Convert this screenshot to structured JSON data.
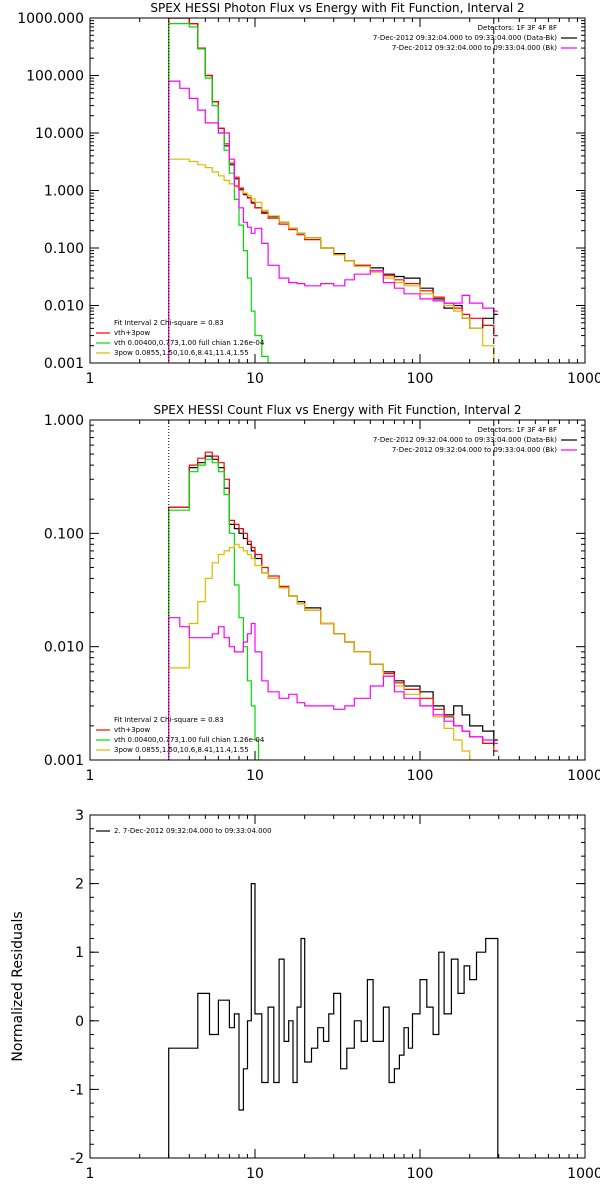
{
  "colors": {
    "data": "#000000",
    "total": "#ff0000",
    "vth": "#00dd00",
    "bpow": "#ddbb00",
    "bk": "#ff00ff",
    "axes": "#000000"
  },
  "chart_data": [
    {
      "id": "photon",
      "type": "line",
      "title": "SPEX HESSI Photon Flux vs Energy with Fit Function, Interval 2",
      "xlabel": "",
      "ylabel": "",
      "xscale": "log",
      "yscale": "log",
      "xlim": [
        1,
        1000
      ],
      "ylim": [
        0.001,
        1000
      ],
      "xticks": [
        1,
        10,
        100,
        1000
      ],
      "xtick_labels": [
        "1",
        "10",
        "100",
        "1000"
      ],
      "yticks": [
        0.001,
        0.01,
        0.1,
        1,
        10,
        100,
        1000
      ],
      "ytick_labels": [
        "0.001",
        "0.010",
        "0.100",
        "1.000",
        "10.000",
        "100.000",
        "1000.000"
      ],
      "vlines": [
        {
          "x": 3,
          "style": "dotted",
          "color": "#000000"
        },
        {
          "x": 280,
          "style": "dashed",
          "color": "#000000"
        }
      ],
      "legend_right": [
        {
          "text": "Detectors: 1F 3F 4F 8F",
          "color": "#000000"
        },
        {
          "text": "7-Dec-2012 09:32:04.000 to 09:33:04.000 (Data-Bk)",
          "color": "#000000"
        },
        {
          "text": "7-Dec-2012 09:32:04.000 to 09:33:04.000 (Bk)",
          "color": "#ff00ff"
        }
      ],
      "legend_left": [
        {
          "text": "Fit Interval 2   Chi-square = 0.83",
          "color": "#000000"
        },
        {
          "text": "vth+3pow",
          "color": "#ff0000"
        },
        {
          "text": "vth 0.00400,0.773,1.00  full chian 1.26e-04",
          "color": "#00dd00"
        },
        {
          "text": "3pow 0.0855,1.50,10.6,8.41,11.4,1.55",
          "color": "#ddbb00"
        }
      ],
      "series": [
        {
          "key": "data",
          "x": [
            3,
            3.5,
            4,
            4.5,
            5,
            5.5,
            6,
            6.5,
            7,
            7.5,
            8,
            8.5,
            9,
            9.5,
            10,
            11,
            12,
            14,
            16,
            18,
            20,
            25,
            30,
            35,
            40,
            50,
            60,
            70,
            80,
            100,
            120,
            140,
            160,
            180,
            200,
            240,
            280
          ],
          "y": [
            1000,
            1000,
            800,
            300,
            100,
            35,
            12,
            6,
            2.8,
            1.6,
            1.05,
            0.85,
            0.75,
            0.62,
            0.5,
            0.42,
            0.35,
            0.28,
            0.22,
            0.18,
            0.15,
            0.1,
            0.08,
            0.06,
            0.05,
            0.045,
            0.035,
            0.032,
            0.03,
            0.02,
            0.013,
            0.009,
            0.01,
            0.006,
            0.004,
            0.006,
            0.007
          ]
        },
        {
          "key": "total",
          "x": [
            3,
            3.5,
            4,
            4.5,
            5,
            5.5,
            6,
            6.5,
            7,
            7.5,
            8,
            8.5,
            9,
            9.5,
            10,
            11,
            12,
            14,
            16,
            18,
            20,
            25,
            30,
            35,
            40,
            50,
            60,
            70,
            80,
            100,
            120,
            140,
            160,
            180,
            200,
            240,
            280
          ],
          "y": [
            1000,
            1000,
            800,
            300,
            100,
            35,
            12,
            6.5,
            3,
            1.7,
            1.1,
            0.88,
            0.74,
            0.6,
            0.5,
            0.4,
            0.33,
            0.26,
            0.21,
            0.17,
            0.14,
            0.1,
            0.076,
            0.06,
            0.05,
            0.04,
            0.033,
            0.028,
            0.024,
            0.018,
            0.014,
            0.011,
            0.009,
            0.007,
            0.006,
            0.0045,
            0.003
          ]
        },
        {
          "key": "vth",
          "x": [
            3,
            3.5,
            4,
            4.5,
            5,
            5.5,
            6,
            6.5,
            7,
            7.5,
            8,
            8.5,
            9,
            9.5,
            10,
            11,
            12
          ],
          "y": [
            800,
            800,
            700,
            290,
            90,
            30,
            10,
            5,
            2,
            0.7,
            0.25,
            0.09,
            0.03,
            0.008,
            0.003,
            0.0013,
            0.001
          ]
        },
        {
          "key": "bpow",
          "x": [
            3,
            3.5,
            4,
            4.5,
            5,
            5.5,
            6,
            6.5,
            7,
            7.5,
            8,
            8.5,
            9,
            9.5,
            10,
            11,
            12,
            14,
            16,
            18,
            20,
            25,
            30,
            35,
            40,
            50,
            60,
            70,
            80,
            100,
            120,
            140,
            160,
            180,
            200,
            240,
            280
          ],
          "y": [
            3.5,
            3.5,
            3.2,
            2.8,
            2.5,
            2.1,
            1.8,
            1.5,
            1.3,
            1.15,
            1.0,
            0.9,
            0.82,
            0.72,
            0.62,
            0.45,
            0.36,
            0.28,
            0.22,
            0.18,
            0.15,
            0.1,
            0.076,
            0.06,
            0.048,
            0.038,
            0.03,
            0.025,
            0.022,
            0.016,
            0.012,
            0.01,
            0.008,
            0.006,
            0.004,
            0.002,
            0.001
          ]
        },
        {
          "key": "bk",
          "x": [
            3,
            3.5,
            4,
            4.5,
            5,
            5.5,
            6,
            6.5,
            7,
            7.5,
            8,
            8.5,
            9,
            9.5,
            10,
            11,
            12,
            14,
            16,
            18,
            20,
            25,
            30,
            35,
            40,
            50,
            60,
            70,
            80,
            100,
            120,
            140,
            160,
            180,
            200,
            240,
            280
          ],
          "y": [
            80,
            60,
            40,
            25,
            15,
            15,
            10,
            10,
            3.5,
            1.2,
            0.5,
            0.28,
            0.23,
            0.18,
            0.22,
            0.12,
            0.05,
            0.03,
            0.025,
            0.024,
            0.022,
            0.024,
            0.022,
            0.028,
            0.035,
            0.04,
            0.025,
            0.02,
            0.016,
            0.013,
            0.012,
            0.011,
            0.011,
            0.015,
            0.011,
            0.009,
            0.008
          ]
        }
      ]
    },
    {
      "id": "count",
      "type": "line",
      "title": "SPEX HESSI Count Flux vs Energy with Fit Function, Interval 2",
      "xlabel": "",
      "ylabel": "",
      "xscale": "log",
      "yscale": "log",
      "xlim": [
        1,
        1000
      ],
      "ylim": [
        0.001,
        1
      ],
      "xticks": [
        1,
        10,
        100,
        1000
      ],
      "xtick_labels": [
        "1",
        "10",
        "100",
        "1000"
      ],
      "yticks": [
        0.001,
        0.01,
        0.1,
        1
      ],
      "ytick_labels": [
        "0.001",
        "0.010",
        "0.100",
        "1.000"
      ],
      "vlines": [
        {
          "x": 3,
          "style": "dotted",
          "color": "#000000"
        },
        {
          "x": 280,
          "style": "dashed",
          "color": "#000000"
        }
      ],
      "legend_right": [
        {
          "text": "Detectors: 1F 3F 4F 8F",
          "color": "#000000"
        },
        {
          "text": "7-Dec-2012 09:32:04.000 to 09:33:04.000 (Data-Bk)",
          "color": "#000000"
        },
        {
          "text": "7-Dec-2012 09:32:04.000 to 09:33:04.000 (Bk)",
          "color": "#ff00ff"
        }
      ],
      "legend_left": [
        {
          "text": "Fit Interval 2   Chi-square = 0.83",
          "color": "#000000"
        },
        {
          "text": "vth+3pow",
          "color": "#ff0000"
        },
        {
          "text": "vth 0.00400,0.773,1.00  full chian 1.26e-04",
          "color": "#00dd00"
        },
        {
          "text": "3pow 0.0855,1.50,10.6,8.41,11.4,1.55",
          "color": "#ddbb00"
        }
      ],
      "series": [
        {
          "key": "data",
          "x": [
            3,
            3.5,
            4,
            4.5,
            5,
            5.5,
            6,
            6.5,
            7,
            7.5,
            8,
            8.5,
            9,
            9.5,
            10,
            11,
            12,
            14,
            16,
            18,
            20,
            25,
            30,
            35,
            40,
            50,
            60,
            70,
            80,
            100,
            120,
            140,
            160,
            180,
            200,
            240,
            280
          ],
          "y": [
            0.17,
            0.17,
            0.38,
            0.42,
            0.48,
            0.45,
            0.38,
            0.25,
            0.12,
            0.11,
            0.1,
            0.09,
            0.08,
            0.07,
            0.06,
            0.045,
            0.04,
            0.033,
            0.028,
            0.025,
            0.022,
            0.016,
            0.013,
            0.011,
            0.009,
            0.007,
            0.006,
            0.005,
            0.0045,
            0.004,
            0.003,
            0.0025,
            0.003,
            0.0025,
            0.002,
            0.0018,
            0.0015
          ]
        },
        {
          "key": "total",
          "x": [
            3,
            3.5,
            4,
            4.5,
            5,
            5.5,
            6,
            6.5,
            7,
            7.5,
            8,
            8.5,
            9,
            9.5,
            10,
            11,
            12,
            14,
            16,
            18,
            20,
            25,
            30,
            35,
            40,
            50,
            60,
            70,
            80,
            100,
            120,
            140,
            160,
            180,
            200,
            240,
            280
          ],
          "y": [
            0.17,
            0.17,
            0.4,
            0.46,
            0.52,
            0.48,
            0.42,
            0.3,
            0.13,
            0.12,
            0.11,
            0.1,
            0.085,
            0.075,
            0.065,
            0.05,
            0.042,
            0.034,
            0.028,
            0.024,
            0.021,
            0.016,
            0.013,
            0.011,
            0.009,
            0.007,
            0.0058,
            0.0048,
            0.0042,
            0.0035,
            0.0028,
            0.0024,
            0.002,
            0.0018,
            0.0016,
            0.0014,
            0.0012
          ]
        },
        {
          "key": "vth",
          "x": [
            3,
            3.5,
            4,
            4.5,
            5,
            5.5,
            6,
            6.5,
            7,
            7.5,
            8,
            8.5,
            9,
            9.5,
            10,
            10.5
          ],
          "y": [
            0.16,
            0.16,
            0.35,
            0.4,
            0.45,
            0.42,
            0.35,
            0.22,
            0.1,
            0.035,
            0.018,
            0.01,
            0.005,
            0.003,
            0.0015,
            0.001
          ]
        },
        {
          "key": "bpow",
          "x": [
            3,
            3.5,
            4,
            4.5,
            5,
            5.5,
            6,
            6.5,
            7,
            7.5,
            8,
            8.5,
            9,
            9.5,
            10,
            11,
            12,
            14,
            16,
            18,
            20,
            25,
            30,
            35,
            40,
            50,
            60,
            70,
            80,
            100,
            120,
            140,
            160,
            180,
            200
          ],
          "y": [
            0.0065,
            0.0065,
            0.016,
            0.025,
            0.04,
            0.055,
            0.065,
            0.07,
            0.075,
            0.08,
            0.075,
            0.07,
            0.065,
            0.06,
            0.052,
            0.045,
            0.04,
            0.033,
            0.028,
            0.024,
            0.021,
            0.016,
            0.013,
            0.011,
            0.009,
            0.007,
            0.0055,
            0.0045,
            0.0038,
            0.003,
            0.0024,
            0.0019,
            0.0015,
            0.0012,
            0.001
          ]
        },
        {
          "key": "bk",
          "x": [
            3,
            3.5,
            4,
            4.5,
            5,
            5.5,
            6,
            6.5,
            7,
            7.5,
            8,
            8.5,
            9,
            9.5,
            10,
            11,
            12,
            14,
            16,
            18,
            20,
            25,
            30,
            35,
            40,
            50,
            60,
            70,
            80,
            100,
            120,
            140,
            160,
            180,
            200,
            240,
            280
          ],
          "y": [
            0.018,
            0.015,
            0.012,
            0.012,
            0.012,
            0.013,
            0.015,
            0.012,
            0.01,
            0.009,
            0.009,
            0.011,
            0.013,
            0.016,
            0.009,
            0.005,
            0.004,
            0.0035,
            0.0038,
            0.0032,
            0.003,
            0.003,
            0.0028,
            0.003,
            0.0035,
            0.0045,
            0.0055,
            0.004,
            0.0035,
            0.003,
            0.0025,
            0.0022,
            0.002,
            0.0018,
            0.0016,
            0.0015,
            0.0014
          ]
        }
      ]
    },
    {
      "id": "resid",
      "type": "line",
      "title": "",
      "xlabel": "",
      "ylabel": "Normalized Residuals",
      "xscale": "log",
      "yscale": "linear",
      "xlim": [
        1,
        1000
      ],
      "ylim": [
        -2,
        3
      ],
      "xticks": [
        1,
        10,
        100,
        1000
      ],
      "xtick_labels": [
        "1",
        "10",
        "100",
        "1000"
      ],
      "yticks": [
        -2,
        -1,
        0,
        1,
        2,
        3
      ],
      "ytick_labels": [
        "-2",
        "-1",
        "0",
        "1",
        "2",
        "3"
      ],
      "vlines": [],
      "legend_right": [],
      "legend_left": [
        {
          "text": "2. 7-Dec-2012 09:32:04.000 to 09:33:04.000",
          "color": "#000000"
        }
      ],
      "series": [
        {
          "key": "data",
          "x": [
            3,
            4,
            4.5,
            5.3,
            6,
            7,
            7.5,
            8,
            8.5,
            9,
            9.5,
            10,
            11,
            12,
            13,
            14,
            15,
            16,
            17,
            18,
            19,
            20,
            22,
            24,
            26,
            28,
            30,
            33,
            36,
            40,
            44,
            48,
            52,
            56,
            60,
            65,
            70,
            75,
            80,
            85,
            90,
            100,
            110,
            120,
            130,
            140,
            155,
            170,
            185,
            200,
            220,
            250,
            280
          ],
          "y": [
            -0.4,
            -0.4,
            0.4,
            -0.2,
            0.3,
            -0.1,
            0.1,
            -1.3,
            -0.7,
            0.0,
            2.0,
            0.1,
            -0.9,
            0.2,
            -0.9,
            0.9,
            -0.3,
            0.0,
            -0.9,
            0.2,
            1.2,
            -0.6,
            -0.4,
            -0.1,
            -0.3,
            0.1,
            0.4,
            -0.7,
            -0.4,
            0.0,
            -0.3,
            0.6,
            -0.3,
            -0.3,
            0.2,
            -0.9,
            -0.7,
            -0.5,
            -0.1,
            -0.4,
            0.1,
            0.6,
            0.2,
            -0.2,
            1.0,
            0.1,
            0.9,
            0.4,
            0.8,
            0.6,
            1.0,
            1.2,
            1.2
          ]
        }
      ]
    }
  ]
}
